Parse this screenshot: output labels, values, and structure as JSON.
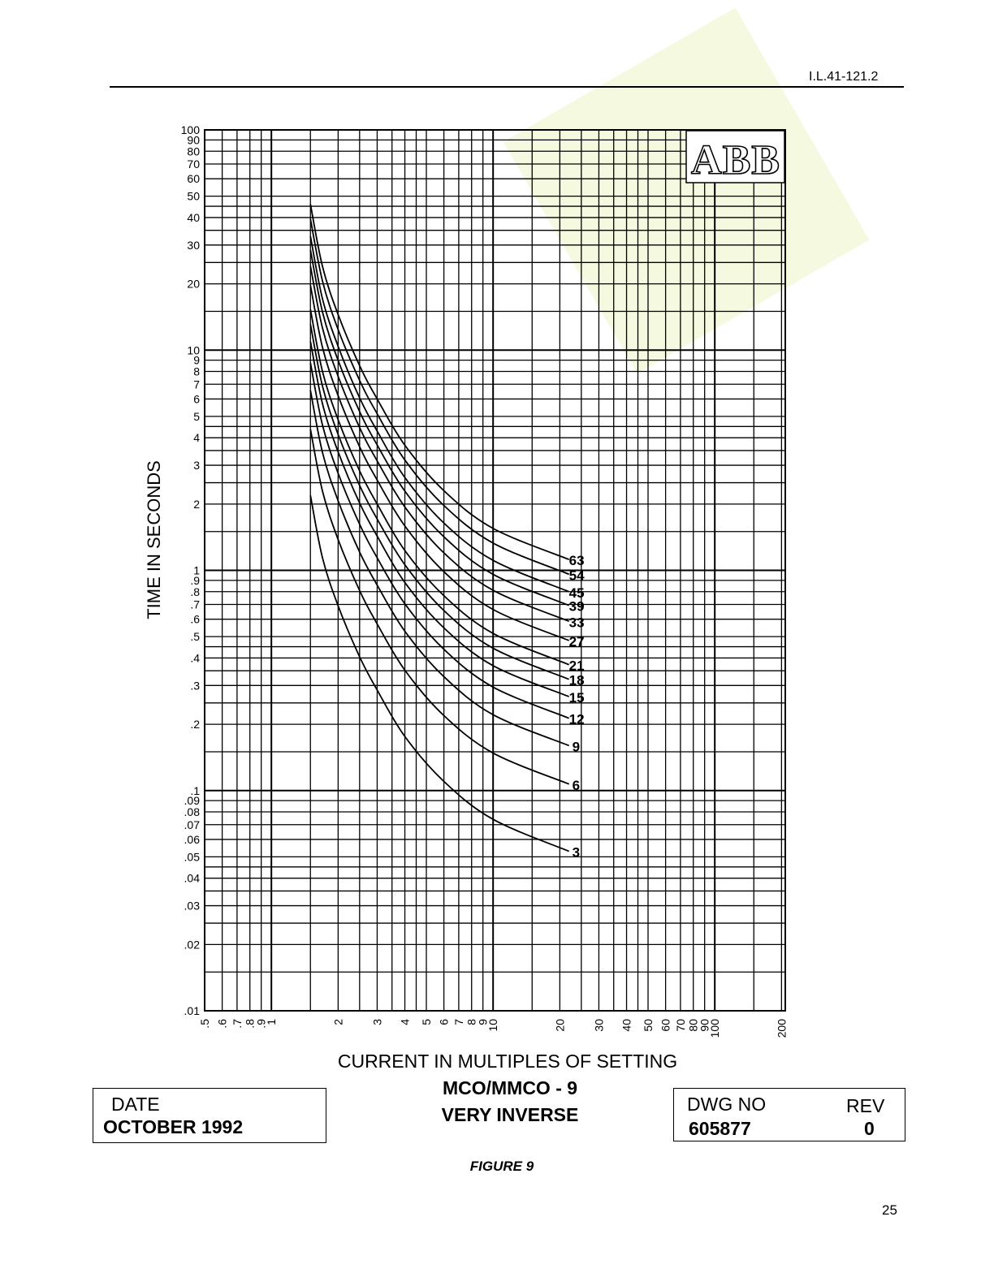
{
  "header": {
    "doc_id": "I.L.41-121.2"
  },
  "footer": {
    "date_label": "DATE",
    "date_value": "OCTOBER 1992",
    "dwg_label": "DWG  NO",
    "dwg_value": "605877",
    "rev_label": "REV",
    "rev_value": "0",
    "figure": "FIGURE 9",
    "page": "25"
  },
  "logo": {
    "text": "ABB"
  },
  "chart_data": {
    "type": "line",
    "title": "MCO/MMCO - 9",
    "subtitle": "VERY INVERSE",
    "xlabel": "CURRENT IN MULTIPLES OF SETTING",
    "ylabel": "TIME IN SECONDS",
    "xscale": "log",
    "yscale": "log",
    "xlim": [
      0.5,
      200
    ],
    "ylim": [
      0.01,
      100
    ],
    "grid": true,
    "x_tick_labels": [
      ".5",
      ".6",
      ".7",
      ".8",
      ".9",
      "1",
      "2",
      "3",
      "4",
      "5",
      "6",
      "7",
      "8",
      "9",
      "10",
      "20",
      "30",
      "40",
      "50",
      "60",
      "70",
      "80",
      "90",
      "100",
      "200"
    ],
    "x_tick_values": [
      0.5,
      0.6,
      0.7,
      0.8,
      0.9,
      1,
      2,
      3,
      4,
      5,
      6,
      7,
      8,
      9,
      10,
      20,
      30,
      40,
      50,
      60,
      70,
      80,
      90,
      100,
      200
    ],
    "y_tick_labels": [
      "100",
      "90",
      "80",
      "70",
      "60",
      "50",
      "40",
      "30",
      "20",
      "10",
      "9",
      "8",
      "7",
      "6",
      "5",
      "4",
      "3",
      "2",
      "1",
      ".9",
      ".8",
      ".7",
      ".6",
      ".5",
      ".4",
      ".3",
      ".2",
      ".1",
      ".09",
      ".08",
      ".07",
      ".06",
      ".05",
      ".04",
      ".03",
      ".02",
      ".01"
    ],
    "y_tick_values": [
      100,
      90,
      80,
      70,
      60,
      50,
      40,
      30,
      20,
      10,
      9,
      8,
      7,
      6,
      5,
      4,
      3,
      2,
      1,
      0.9,
      0.8,
      0.7,
      0.6,
      0.5,
      0.4,
      0.3,
      0.2,
      0.1,
      0.09,
      0.08,
      0.07,
      0.06,
      0.05,
      0.04,
      0.03,
      0.02,
      0.01
    ],
    "x": [
      1.5,
      1.7,
      2,
      2.5,
      3,
      4,
      6,
      10,
      22
    ],
    "series": [
      {
        "name": "63",
        "values": [
          46,
          24,
          14.5,
          8.5,
          6,
          3.7,
          2.3,
          1.55,
          1.12
        ]
      },
      {
        "name": "54",
        "values": [
          39.4,
          20.6,
          12.4,
          7.29,
          5.14,
          3.17,
          1.97,
          1.33,
          0.96
        ]
      },
      {
        "name": "45",
        "values": [
          32.9,
          17.1,
          10.4,
          6.07,
          4.29,
          2.64,
          1.64,
          1.11,
          0.8
        ]
      },
      {
        "name": "39",
        "values": [
          28.5,
          14.9,
          8.98,
          5.26,
          3.71,
          2.29,
          1.42,
          0.959,
          0.693
        ]
      },
      {
        "name": "33",
        "values": [
          24.1,
          12.6,
          7.6,
          4.45,
          3.14,
          1.94,
          1.2,
          0.812,
          0.587
        ]
      },
      {
        "name": "27",
        "values": [
          19.7,
          10.3,
          6.21,
          3.64,
          2.57,
          1.59,
          0.986,
          0.664,
          0.48
        ]
      },
      {
        "name": "21",
        "values": [
          15.3,
          8.0,
          4.83,
          2.83,
          2.0,
          1.23,
          0.767,
          0.517,
          0.373
        ]
      },
      {
        "name": "18",
        "values": [
          13.1,
          6.86,
          4.14,
          2.43,
          1.71,
          1.06,
          0.657,
          0.443,
          0.32
        ]
      },
      {
        "name": "15",
        "values": [
          10.95,
          5.71,
          3.45,
          2.02,
          1.43,
          0.881,
          0.548,
          0.369,
          0.267
        ]
      },
      {
        "name": "12",
        "values": [
          8.76,
          4.57,
          2.76,
          1.62,
          1.14,
          0.705,
          0.438,
          0.295,
          0.213
        ]
      },
      {
        "name": "9",
        "values": [
          6.57,
          3.43,
          2.07,
          1.21,
          0.857,
          0.529,
          0.329,
          0.221,
          0.16
        ]
      },
      {
        "name": "6",
        "values": [
          4.38,
          2.29,
          1.38,
          0.81,
          0.571,
          0.352,
          0.219,
          0.148,
          0.107
        ]
      },
      {
        "name": "3",
        "values": [
          2.19,
          1.14,
          0.69,
          0.405,
          0.286,
          0.176,
          0.11,
          0.074,
          0.053
        ]
      }
    ]
  }
}
